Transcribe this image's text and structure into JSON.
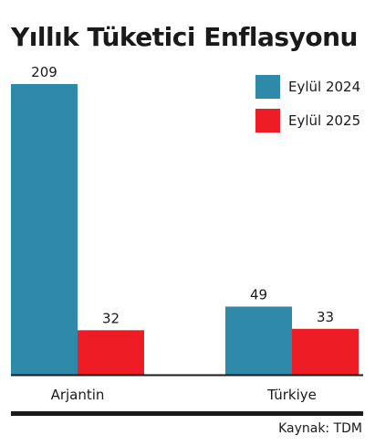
{
  "title": "Yıllık Tüketici Enflasyonu",
  "source": "Kaynak: TDM",
  "colors": {
    "series_2024": "#2e8aa8",
    "series_2025": "#ee1c25",
    "axis": "#1a1a1a",
    "text": "#1a1a1a"
  },
  "chart_data": {
    "type": "bar",
    "title": "Yıllık Tüketici Enflasyonu",
    "categories": [
      "Arjantin",
      "Türkiye"
    ],
    "series": [
      {
        "name": "Eylül 2024",
        "values": [
          209,
          49
        ],
        "color": "#2e8aa8"
      },
      {
        "name": "Eylül 2025",
        "values": [
          32,
          33
        ],
        "color": "#ee1c25"
      }
    ],
    "data_labels": true,
    "legend": "top-right",
    "grid": false,
    "xlabel": "",
    "ylabel": "",
    "ylim": [
      0,
      209
    ]
  }
}
